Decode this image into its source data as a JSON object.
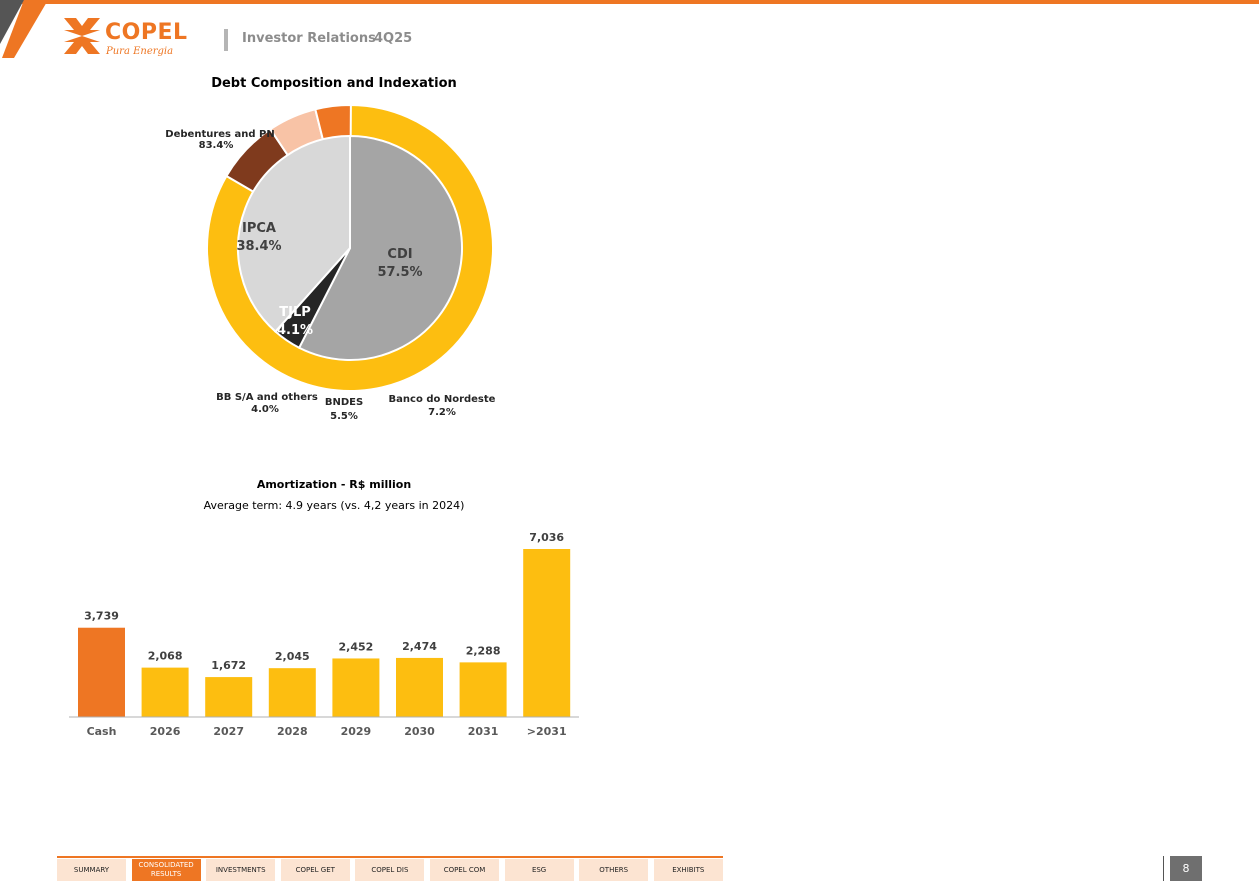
{
  "header": {
    "brand_name": "COPEL",
    "brand_tagline": "Pura Energia",
    "section": "Investor Relations",
    "period": "4Q25"
  },
  "colors": {
    "orange": "#ee7623",
    "yellow": "#fdbe10",
    "gray_dark": "#a5a5a5",
    "gray_light": "#d8d8d8",
    "black": "#262626",
    "brown": "#7f3a1d",
    "peach": "#f8c3a6"
  },
  "chart_data": [
    {
      "type": "pie",
      "title": "Debt Composition and Indexation",
      "rings": [
        {
          "name": "inner",
          "slices": [
            {
              "label": "CDI",
              "value": 57.5,
              "value_label": "57.5%",
              "color": "#a5a5a5"
            },
            {
              "label": "TJLP",
              "value": 4.1,
              "value_label": "4.1%",
              "color": "#262626"
            },
            {
              "label": "IPCA",
              "value": 38.4,
              "value_label": "38.4%",
              "color": "#d8d8d8"
            }
          ]
        },
        {
          "name": "outer",
          "slices": [
            {
              "label": "Debentures and PN",
              "value": 83.4,
              "value_label": "83.4%",
              "color": "#fdbe10",
              "start_deg": 0
            },
            {
              "label": "Banco do Nordeste",
              "value": 7.2,
              "value_label": "7.2%",
              "color": "#7f3a1d"
            },
            {
              "label": "BNDES",
              "value": 5.5,
              "value_label": "5.5%",
              "color": "#f8c3a6"
            },
            {
              "label": "BB S/A and others",
              "value": 4.0,
              "value_label": "4.0%",
              "color": "#ee7623"
            }
          ]
        }
      ]
    },
    {
      "type": "bar",
      "title": "Amortization - R$ million",
      "subtitle": "Average term: 4.9 years (vs. 4,2 years in 2024)",
      "categories": [
        "Cash",
        "2026",
        "2027",
        "2028",
        "2029",
        "2030",
        "2031",
        ">2031"
      ],
      "values": [
        3739,
        2068,
        1672,
        2045,
        2452,
        2474,
        2288,
        7036
      ],
      "value_labels": [
        "3,739",
        "2,068",
        "1,672",
        "2,045",
        "2,452",
        "2,474",
        "2,288",
        "7,036"
      ],
      "colors": [
        "#ee7623",
        "#fdbe10",
        "#fdbe10",
        "#fdbe10",
        "#fdbe10",
        "#fdbe10",
        "#fdbe10",
        "#fdbe10"
      ],
      "ylim": [
        0,
        7036
      ],
      "grid": false
    }
  ],
  "nav": {
    "items": [
      {
        "label": "SUMMARY",
        "active": false
      },
      {
        "label": "CONSOLIDATED RESULTS",
        "active": true
      },
      {
        "label": "INVESTMENTS",
        "active": false
      },
      {
        "label": "COPEL GET",
        "active": false
      },
      {
        "label": "COPEL DIS",
        "active": false
      },
      {
        "label": "COPEL COM",
        "active": false
      },
      {
        "label": "ESG",
        "active": false
      },
      {
        "label": "OTHERS",
        "active": false
      },
      {
        "label": "EXHIBITS",
        "active": false
      }
    ]
  },
  "page_number": "8"
}
